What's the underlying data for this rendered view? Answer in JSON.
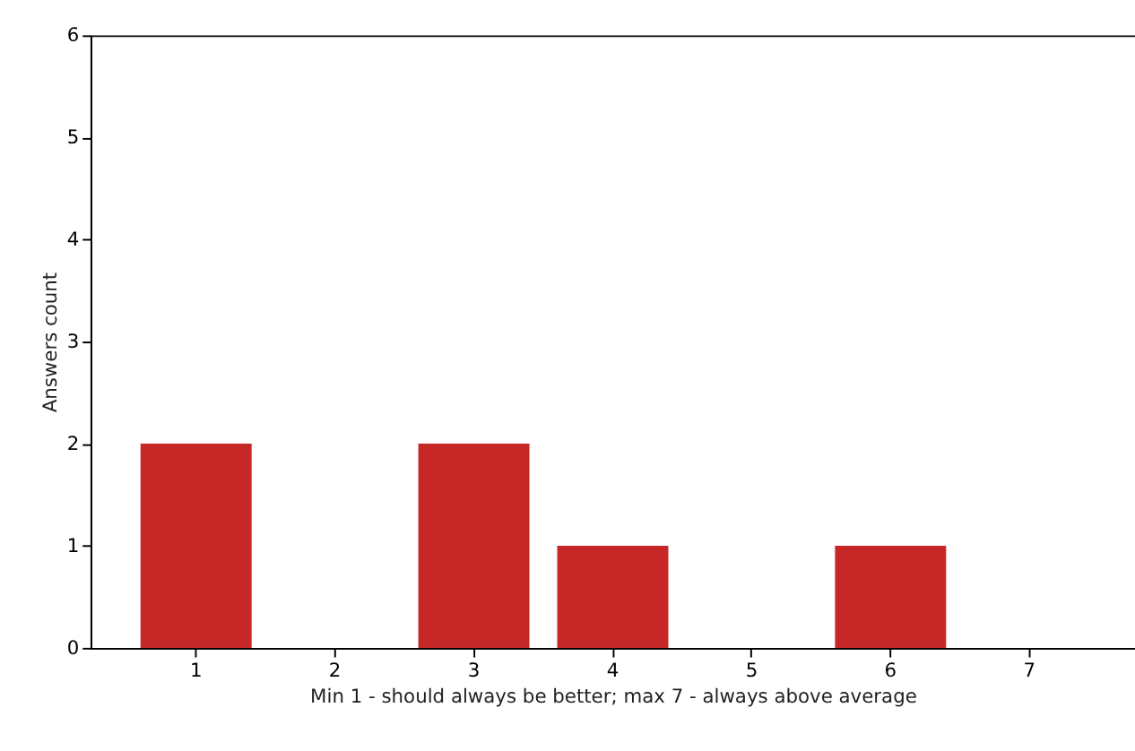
{
  "chart_data": {
    "type": "bar",
    "categories": [
      "1",
      "2",
      "3",
      "4",
      "5",
      "6",
      "7"
    ],
    "values": [
      2,
      0,
      2,
      1,
      0,
      1,
      0
    ],
    "color": "#c62828",
    "xlabel": "Min 1 - should always be better; max 7 - always above average",
    "ylabel": "Answers count",
    "ylim": [
      0,
      6
    ],
    "yticks": [
      0,
      1,
      2,
      3,
      4,
      5,
      6
    ],
    "grid": false
  }
}
